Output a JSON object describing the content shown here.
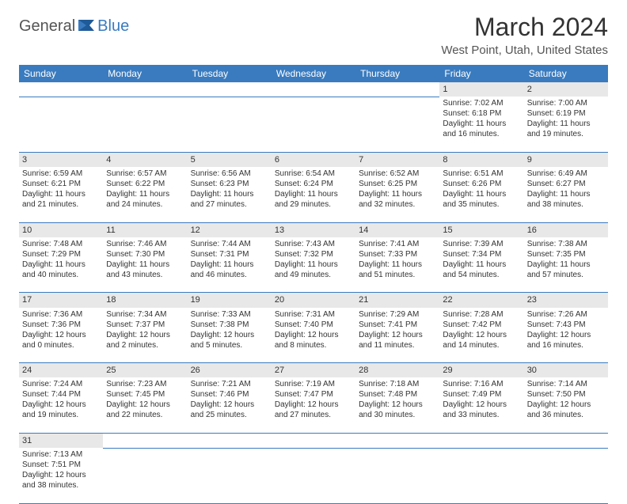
{
  "brand": {
    "part1": "General",
    "part2": "Blue"
  },
  "title": "March 2024",
  "location": "West Point, Utah, United States",
  "colors": {
    "header_bg": "#3a7bbf",
    "header_text": "#ffffff",
    "daynum_bg": "#e8e8e8",
    "row_divider": "#3a7bbf",
    "text": "#333333",
    "brand_accent": "#3a7bbf"
  },
  "weekdays": [
    "Sunday",
    "Monday",
    "Tuesday",
    "Wednesday",
    "Thursday",
    "Friday",
    "Saturday"
  ],
  "weeks": [
    [
      null,
      null,
      null,
      null,
      null,
      {
        "n": "1",
        "sr": "Sunrise: 7:02 AM",
        "ss": "Sunset: 6:18 PM",
        "d1": "Daylight: 11 hours",
        "d2": "and 16 minutes."
      },
      {
        "n": "2",
        "sr": "Sunrise: 7:00 AM",
        "ss": "Sunset: 6:19 PM",
        "d1": "Daylight: 11 hours",
        "d2": "and 19 minutes."
      }
    ],
    [
      {
        "n": "3",
        "sr": "Sunrise: 6:59 AM",
        "ss": "Sunset: 6:21 PM",
        "d1": "Daylight: 11 hours",
        "d2": "and 21 minutes."
      },
      {
        "n": "4",
        "sr": "Sunrise: 6:57 AM",
        "ss": "Sunset: 6:22 PM",
        "d1": "Daylight: 11 hours",
        "d2": "and 24 minutes."
      },
      {
        "n": "5",
        "sr": "Sunrise: 6:56 AM",
        "ss": "Sunset: 6:23 PM",
        "d1": "Daylight: 11 hours",
        "d2": "and 27 minutes."
      },
      {
        "n": "6",
        "sr": "Sunrise: 6:54 AM",
        "ss": "Sunset: 6:24 PM",
        "d1": "Daylight: 11 hours",
        "d2": "and 29 minutes."
      },
      {
        "n": "7",
        "sr": "Sunrise: 6:52 AM",
        "ss": "Sunset: 6:25 PM",
        "d1": "Daylight: 11 hours",
        "d2": "and 32 minutes."
      },
      {
        "n": "8",
        "sr": "Sunrise: 6:51 AM",
        "ss": "Sunset: 6:26 PM",
        "d1": "Daylight: 11 hours",
        "d2": "and 35 minutes."
      },
      {
        "n": "9",
        "sr": "Sunrise: 6:49 AM",
        "ss": "Sunset: 6:27 PM",
        "d1": "Daylight: 11 hours",
        "d2": "and 38 minutes."
      }
    ],
    [
      {
        "n": "10",
        "sr": "Sunrise: 7:48 AM",
        "ss": "Sunset: 7:29 PM",
        "d1": "Daylight: 11 hours",
        "d2": "and 40 minutes."
      },
      {
        "n": "11",
        "sr": "Sunrise: 7:46 AM",
        "ss": "Sunset: 7:30 PM",
        "d1": "Daylight: 11 hours",
        "d2": "and 43 minutes."
      },
      {
        "n": "12",
        "sr": "Sunrise: 7:44 AM",
        "ss": "Sunset: 7:31 PM",
        "d1": "Daylight: 11 hours",
        "d2": "and 46 minutes."
      },
      {
        "n": "13",
        "sr": "Sunrise: 7:43 AM",
        "ss": "Sunset: 7:32 PM",
        "d1": "Daylight: 11 hours",
        "d2": "and 49 minutes."
      },
      {
        "n": "14",
        "sr": "Sunrise: 7:41 AM",
        "ss": "Sunset: 7:33 PM",
        "d1": "Daylight: 11 hours",
        "d2": "and 51 minutes."
      },
      {
        "n": "15",
        "sr": "Sunrise: 7:39 AM",
        "ss": "Sunset: 7:34 PM",
        "d1": "Daylight: 11 hours",
        "d2": "and 54 minutes."
      },
      {
        "n": "16",
        "sr": "Sunrise: 7:38 AM",
        "ss": "Sunset: 7:35 PM",
        "d1": "Daylight: 11 hours",
        "d2": "and 57 minutes."
      }
    ],
    [
      {
        "n": "17",
        "sr": "Sunrise: 7:36 AM",
        "ss": "Sunset: 7:36 PM",
        "d1": "Daylight: 12 hours",
        "d2": "and 0 minutes."
      },
      {
        "n": "18",
        "sr": "Sunrise: 7:34 AM",
        "ss": "Sunset: 7:37 PM",
        "d1": "Daylight: 12 hours",
        "d2": "and 2 minutes."
      },
      {
        "n": "19",
        "sr": "Sunrise: 7:33 AM",
        "ss": "Sunset: 7:38 PM",
        "d1": "Daylight: 12 hours",
        "d2": "and 5 minutes."
      },
      {
        "n": "20",
        "sr": "Sunrise: 7:31 AM",
        "ss": "Sunset: 7:40 PM",
        "d1": "Daylight: 12 hours",
        "d2": "and 8 minutes."
      },
      {
        "n": "21",
        "sr": "Sunrise: 7:29 AM",
        "ss": "Sunset: 7:41 PM",
        "d1": "Daylight: 12 hours",
        "d2": "and 11 minutes."
      },
      {
        "n": "22",
        "sr": "Sunrise: 7:28 AM",
        "ss": "Sunset: 7:42 PM",
        "d1": "Daylight: 12 hours",
        "d2": "and 14 minutes."
      },
      {
        "n": "23",
        "sr": "Sunrise: 7:26 AM",
        "ss": "Sunset: 7:43 PM",
        "d1": "Daylight: 12 hours",
        "d2": "and 16 minutes."
      }
    ],
    [
      {
        "n": "24",
        "sr": "Sunrise: 7:24 AM",
        "ss": "Sunset: 7:44 PM",
        "d1": "Daylight: 12 hours",
        "d2": "and 19 minutes."
      },
      {
        "n": "25",
        "sr": "Sunrise: 7:23 AM",
        "ss": "Sunset: 7:45 PM",
        "d1": "Daylight: 12 hours",
        "d2": "and 22 minutes."
      },
      {
        "n": "26",
        "sr": "Sunrise: 7:21 AM",
        "ss": "Sunset: 7:46 PM",
        "d1": "Daylight: 12 hours",
        "d2": "and 25 minutes."
      },
      {
        "n": "27",
        "sr": "Sunrise: 7:19 AM",
        "ss": "Sunset: 7:47 PM",
        "d1": "Daylight: 12 hours",
        "d2": "and 27 minutes."
      },
      {
        "n": "28",
        "sr": "Sunrise: 7:18 AM",
        "ss": "Sunset: 7:48 PM",
        "d1": "Daylight: 12 hours",
        "d2": "and 30 minutes."
      },
      {
        "n": "29",
        "sr": "Sunrise: 7:16 AM",
        "ss": "Sunset: 7:49 PM",
        "d1": "Daylight: 12 hours",
        "d2": "and 33 minutes."
      },
      {
        "n": "30",
        "sr": "Sunrise: 7:14 AM",
        "ss": "Sunset: 7:50 PM",
        "d1": "Daylight: 12 hours",
        "d2": "and 36 minutes."
      }
    ],
    [
      {
        "n": "31",
        "sr": "Sunrise: 7:13 AM",
        "ss": "Sunset: 7:51 PM",
        "d1": "Daylight: 12 hours",
        "d2": "and 38 minutes."
      },
      null,
      null,
      null,
      null,
      null,
      null
    ]
  ]
}
